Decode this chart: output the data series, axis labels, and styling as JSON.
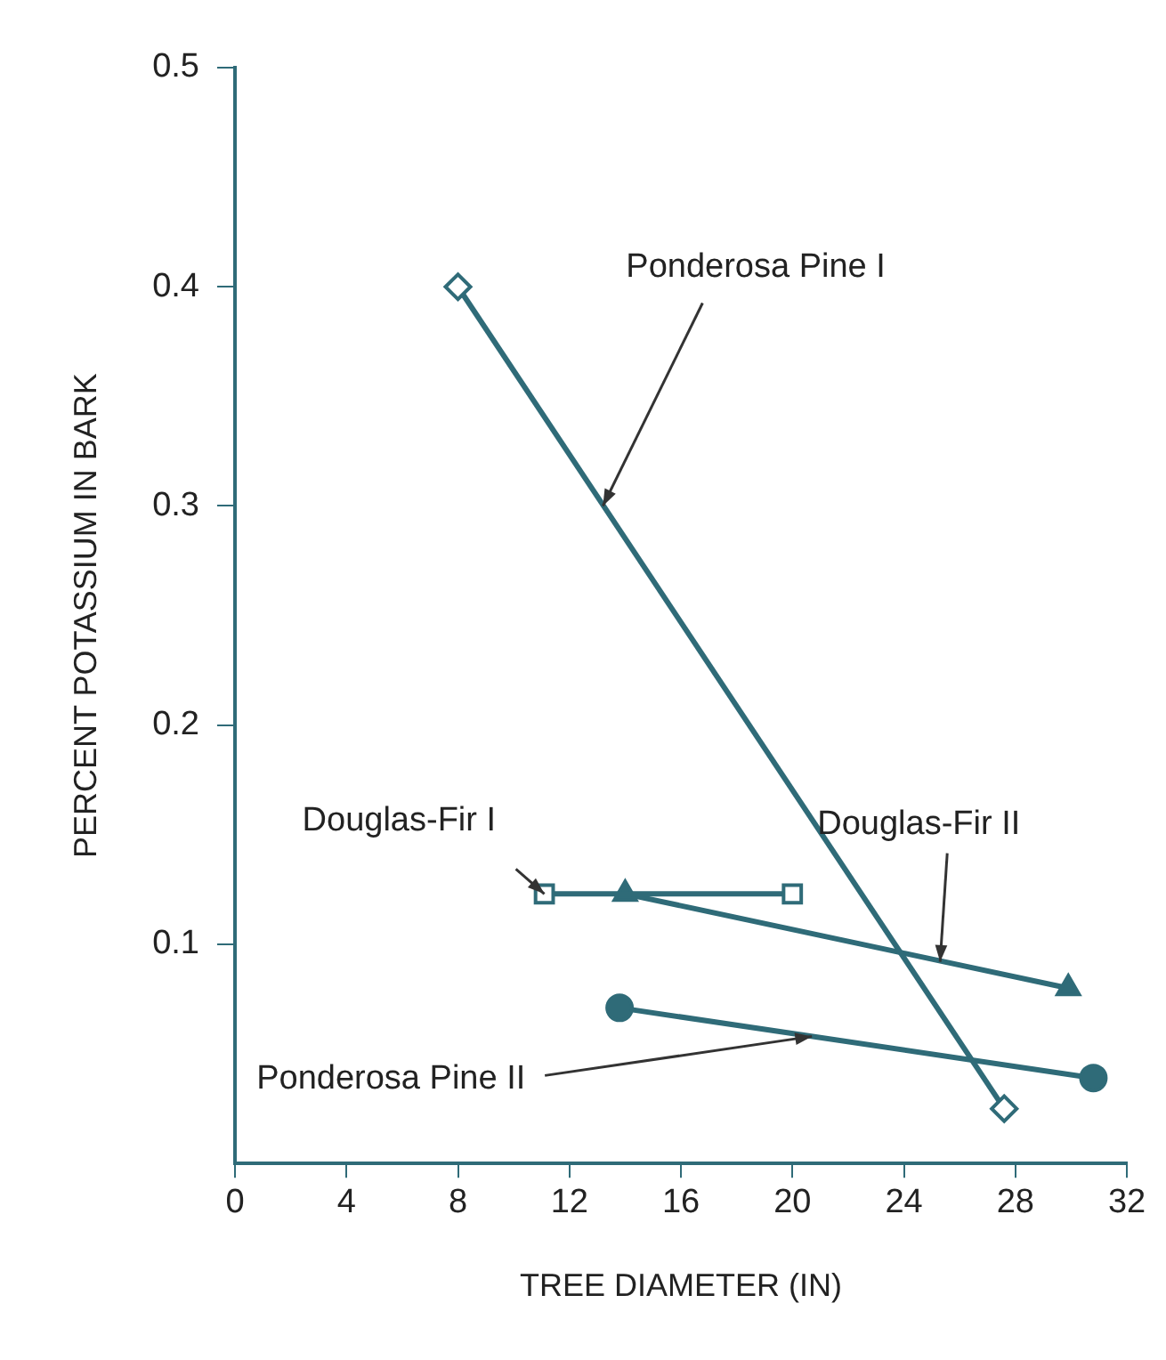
{
  "chart_data": {
    "type": "line",
    "xlabel": "TREE DIAMETER (IN)",
    "ylabel": "PERCENT POTASSIUM IN BARK",
    "xlim": [
      0,
      32
    ],
    "xticks": [
      0,
      4,
      8,
      12,
      16,
      20,
      24,
      28,
      32
    ],
    "ylim": [
      0,
      0.5
    ],
    "yticks": [
      0.1,
      0.2,
      0.3,
      0.4,
      0.5
    ],
    "grid": false,
    "legend": false,
    "line_style": "solid",
    "series": [
      {
        "color": "#2f6b78",
        "marker": "diamond",
        "x": [
          8,
          27.6
        ],
        "values": [
          0.4,
          0.025
        ]
      },
      {
        "color": "#2f6b78",
        "marker": "square",
        "x": [
          11.1,
          20
        ],
        "values": [
          0.123,
          0.123
        ]
      },
      {
        "color": "#2f6b78",
        "marker": "triangle",
        "x": [
          14,
          29.9
        ],
        "values": [
          0.123,
          0.08
        ]
      },
      {
        "color": "#2f6b78",
        "marker": "circle",
        "x": [
          13.8,
          30.8
        ],
        "values": [
          0.071,
          0.039
        ]
      }
    ],
    "annotations": [
      {
        "text": "Ponderosa Pine I",
        "x": 13.2,
        "y": 0.3
      },
      {
        "text": "Douglas-Fir I",
        "x": 11.1,
        "y": 0.123
      },
      {
        "text": "Douglas-Fir II",
        "x": 25.3,
        "y": 0.092
      },
      {
        "text": "Ponderosa Pine II",
        "x": 20.7,
        "y": 0.058
      }
    ]
  }
}
